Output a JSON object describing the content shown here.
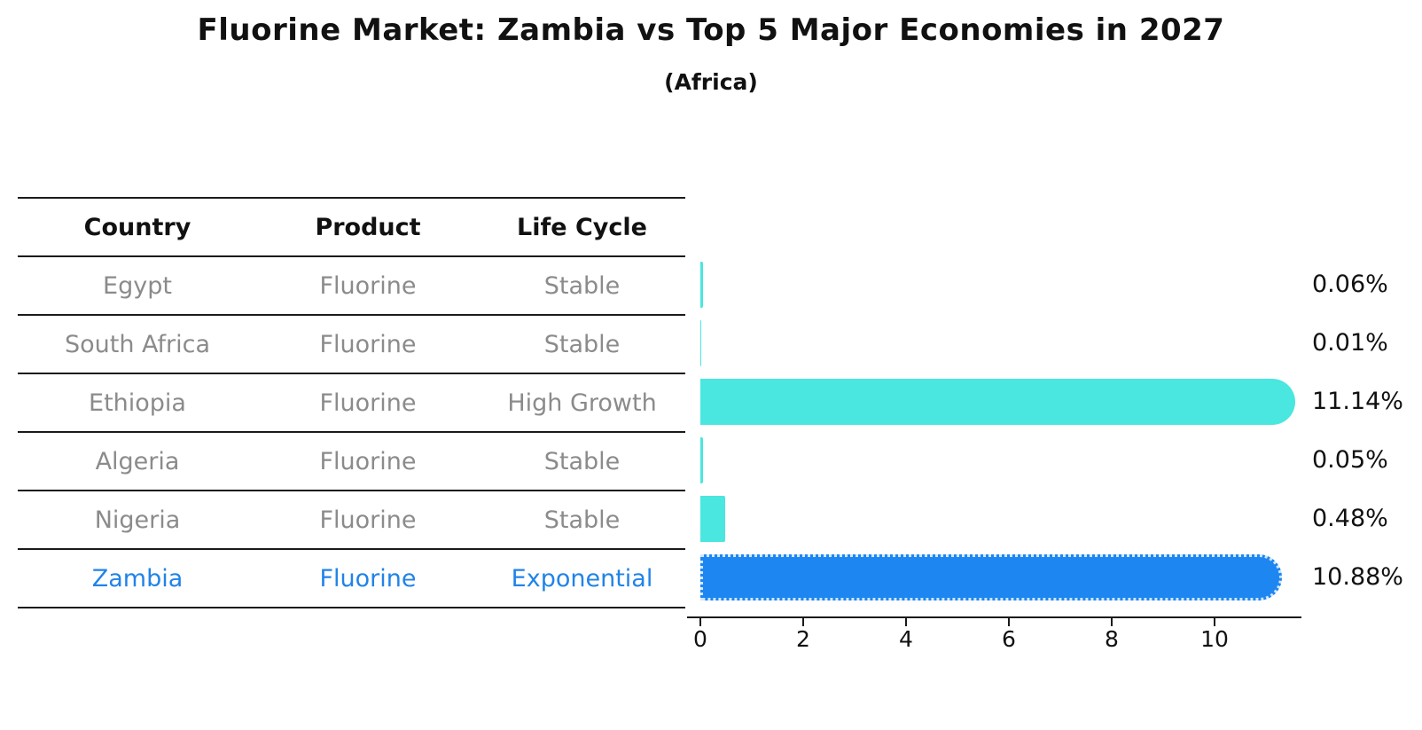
{
  "title": "Fluorine Market: Zambia vs Top 5 Major Economies in 2027",
  "subtitle": "(Africa)",
  "table": {
    "headers": [
      "Country",
      "Product",
      "Life Cycle"
    ],
    "rows": [
      {
        "country": "Egypt",
        "product": "Fluorine",
        "life_cycle": "Stable",
        "highlight": false
      },
      {
        "country": "South Africa",
        "product": "Fluorine",
        "life_cycle": "Stable",
        "highlight": false
      },
      {
        "country": "Ethiopia",
        "product": "Fluorine",
        "life_cycle": "High Growth",
        "highlight": false
      },
      {
        "country": "Algeria",
        "product": "Fluorine",
        "life_cycle": "Stable",
        "highlight": false
      },
      {
        "country": "Nigeria",
        "product": "Fluorine",
        "life_cycle": "Stable",
        "highlight": false
      },
      {
        "country": "Zambia",
        "product": "Fluorine",
        "life_cycle": "Exponential",
        "highlight": true
      }
    ]
  },
  "chart_data": {
    "type": "bar",
    "orientation": "horizontal",
    "categories": [
      "Egypt",
      "South Africa",
      "Ethiopia",
      "Algeria",
      "Nigeria",
      "Zambia"
    ],
    "values": [
      0.06,
      0.01,
      11.14,
      0.05,
      0.48,
      10.88
    ],
    "labels": [
      "0.06%",
      "0.01%",
      "11.14%",
      "0.05%",
      "0.48%",
      "10.88%"
    ],
    "xticks": [
      0,
      2,
      4,
      6,
      8,
      10
    ],
    "xlim": [
      0,
      11.7
    ],
    "grid": false,
    "legend": "none",
    "highlight_index": 5,
    "bar_color": "#4ae6e0",
    "highlight_color": "#1e86f0",
    "highlight_text_color": "#2183e8"
  }
}
